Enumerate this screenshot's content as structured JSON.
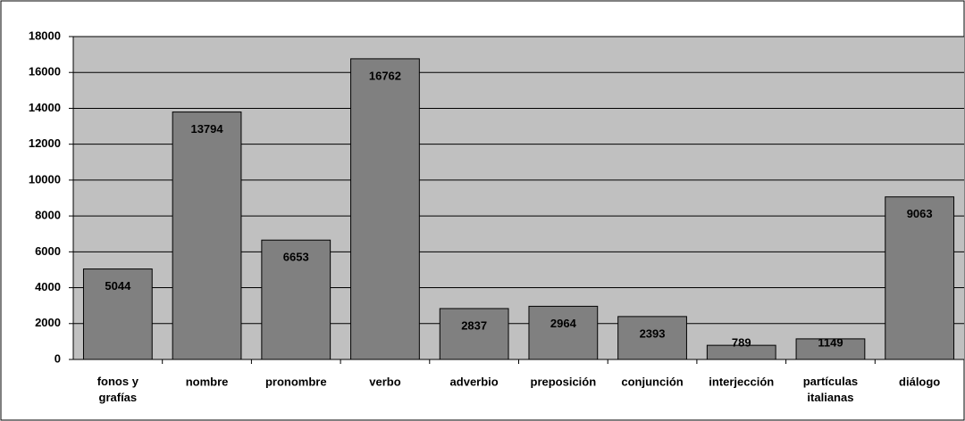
{
  "chart_data": {
    "type": "bar",
    "categories": [
      "fonos y grafías",
      "nombre",
      "pronombre",
      "verbo",
      "adverbio",
      "preposición",
      "conjunción",
      "interjección",
      "partículas italianas",
      "diálogo"
    ],
    "values": [
      5044,
      13794,
      6653,
      16762,
      2837,
      2964,
      2393,
      789,
      1149,
      9063
    ],
    "color": "#808080",
    "plot_background": "#c0c0c0",
    "ylim": [
      0,
      18000
    ],
    "yticks": [
      0,
      2000,
      4000,
      6000,
      8000,
      10000,
      12000,
      14000,
      16000,
      18000
    ],
    "grid": true
  }
}
